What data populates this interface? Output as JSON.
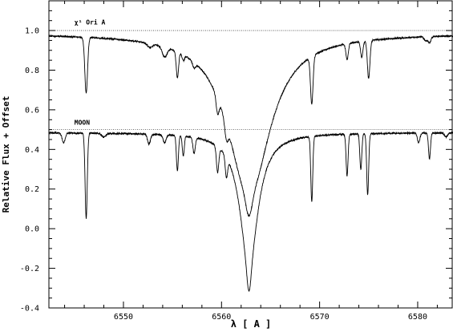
{
  "chart_data": {
    "type": "line",
    "title": "",
    "xlabel": "λ [ A ]",
    "ylabel": "Relative Flux + Offset",
    "xlim": [
      6542.4,
      6583.6
    ],
    "ylim": [
      -0.4,
      1.15
    ],
    "xticks": [
      6550,
      6560,
      6570,
      6580
    ],
    "xtick_labels": [
      "6550",
      "6560",
      "6570",
      "6580"
    ],
    "yticks": [
      -0.4,
      -0.2,
      0.0,
      0.2,
      0.4,
      0.6,
      0.8,
      1.0
    ],
    "ytick_labels": [
      "-0.4",
      "-0.2",
      "0.0",
      "0.2",
      "0.4",
      "0.6",
      "0.8",
      "1.0"
    ],
    "grid": false,
    "reference_lines": [
      {
        "y": 1.0,
        "style": "dotted"
      },
      {
        "y": 0.5,
        "style": "dotted"
      }
    ],
    "annotations": [
      {
        "text": "χ¹ Ori A",
        "x": 6545.0,
        "y": 1.03
      },
      {
        "text": "MOON",
        "x": 6545.0,
        "y": 0.525
      }
    ],
    "series": [
      {
        "wing_center": 6562.8,
        "wing_depth": 0.82,
        "wing_width": 2.6,
        "continuum_base": 0.985,
        "lines": [
          {
            "c": 6546.2,
            "d": 0.28,
            "w": 0.14
          },
          {
            "c": 6552.7,
            "d": 0.02,
            "w": 0.25
          },
          {
            "c": 6554.2,
            "d": 0.05,
            "w": 0.25
          },
          {
            "c": 6555.5,
            "d": 0.13,
            "w": 0.12
          },
          {
            "c": 6556.1,
            "d": 0.03,
            "w": 0.12
          },
          {
            "c": 6557.2,
            "d": 0.03,
            "w": 0.15
          },
          {
            "c": 6559.6,
            "d": 0.08,
            "w": 0.15
          },
          {
            "c": 6560.5,
            "d": 0.08,
            "w": 0.18
          },
          {
            "c": 6562.8,
            "d": 0.1,
            "w": 0.3
          },
          {
            "c": 6569.2,
            "d": 0.24,
            "w": 0.13
          },
          {
            "c": 6572.8,
            "d": 0.08,
            "w": 0.12
          },
          {
            "c": 6574.3,
            "d": 0.08,
            "w": 0.12
          },
          {
            "c": 6575.0,
            "d": 0.19,
            "w": 0.13
          },
          {
            "c": 6580.8,
            "d": 0.02,
            "w": 0.15
          },
          {
            "c": 6581.2,
            "d": 0.03,
            "w": 0.15
          }
        ]
      },
      {
        "wing_center": 6562.8,
        "wing_depth": 0.68,
        "wing_width": 1.1,
        "continuum_base": 0.485,
        "lines": [
          {
            "c": 6543.9,
            "d": 0.05,
            "w": 0.15
          },
          {
            "c": 6546.2,
            "d": 0.43,
            "w": 0.11
          },
          {
            "c": 6548.0,
            "d": 0.02,
            "w": 0.2
          },
          {
            "c": 6552.6,
            "d": 0.05,
            "w": 0.15
          },
          {
            "c": 6554.2,
            "d": 0.04,
            "w": 0.15
          },
          {
            "c": 6555.5,
            "d": 0.18,
            "w": 0.1
          },
          {
            "c": 6556.1,
            "d": 0.1,
            "w": 0.1
          },
          {
            "c": 6557.2,
            "d": 0.08,
            "w": 0.12
          },
          {
            "c": 6559.6,
            "d": 0.13,
            "w": 0.12
          },
          {
            "c": 6560.5,
            "d": 0.1,
            "w": 0.12
          },
          {
            "c": 6562.8,
            "d": 0.12,
            "w": 0.2
          },
          {
            "c": 6569.2,
            "d": 0.33,
            "w": 0.1
          },
          {
            "c": 6572.8,
            "d": 0.21,
            "w": 0.1
          },
          {
            "c": 6574.2,
            "d": 0.18,
            "w": 0.1
          },
          {
            "c": 6574.9,
            "d": 0.31,
            "w": 0.1
          },
          {
            "c": 6580.1,
            "d": 0.05,
            "w": 0.12
          },
          {
            "c": 6581.2,
            "d": 0.13,
            "w": 0.1
          },
          {
            "c": 6582.9,
            "d": 0.02,
            "w": 0.15
          }
        ]
      }
    ]
  }
}
